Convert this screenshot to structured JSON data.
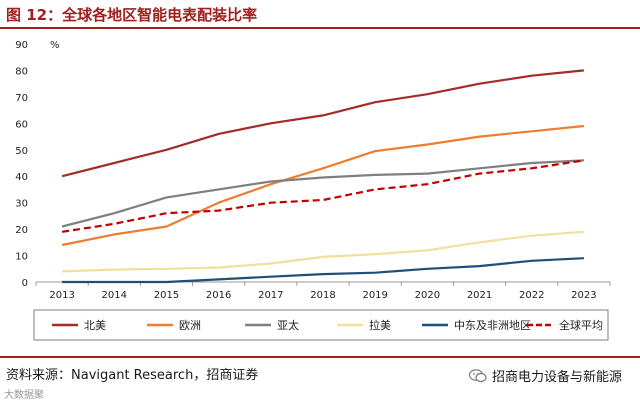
{
  "figure": {
    "title": "图 12：全球各地区智能电表配装比率",
    "source": "资料来源：Navigant Research，招商证券",
    "brand": "招商电力设备与新能源",
    "watermark": "大数据聚",
    "wechat_icon": "wechat-icon"
  },
  "chart_data": {
    "type": "line",
    "title": "全球各地区智能电表配装比率",
    "xlabel": "",
    "ylabel": "%",
    "x": [
      "2013",
      "2014",
      "2015",
      "2016",
      "2017",
      "2018",
      "2019",
      "2020",
      "2021",
      "2022",
      "2023"
    ],
    "ylim": [
      0,
      90
    ],
    "yticks": [
      0,
      10,
      20,
      30,
      40,
      50,
      60,
      70,
      80,
      90
    ],
    "grid": false,
    "legend": "bottom",
    "series": [
      {
        "name": "北美",
        "color": "#a52a2a",
        "dash": false,
        "values": [
          40,
          45,
          50,
          56,
          60,
          63,
          68,
          71,
          75,
          78,
          80
        ]
      },
      {
        "name": "欧洲",
        "color": "#ed7d31",
        "dash": false,
        "values": [
          14,
          18,
          21,
          30,
          37,
          43,
          49.5,
          52,
          55,
          57,
          59
        ]
      },
      {
        "name": "亚太",
        "color": "#7f7f7f",
        "dash": false,
        "values": [
          21,
          26,
          32,
          35,
          38,
          39.5,
          40.5,
          41,
          43,
          45,
          46
        ]
      },
      {
        "name": "拉美",
        "color": "#f2df9b",
        "dash": false,
        "values": [
          4,
          4.7,
          5,
          5.5,
          7,
          9.5,
          10.5,
          12,
          15,
          17.5,
          19
        ]
      },
      {
        "name": "中东及非洲地区",
        "color": "#1f4e79",
        "dash": false,
        "values": [
          0,
          0,
          0,
          1,
          2,
          3,
          3.5,
          5,
          6,
          8,
          9
        ]
      },
      {
        "name": "全球平均",
        "color": "#c00000",
        "dash": true,
        "values": [
          19,
          22,
          26,
          27,
          30,
          31,
          35,
          37,
          41,
          43,
          46
        ]
      }
    ]
  }
}
